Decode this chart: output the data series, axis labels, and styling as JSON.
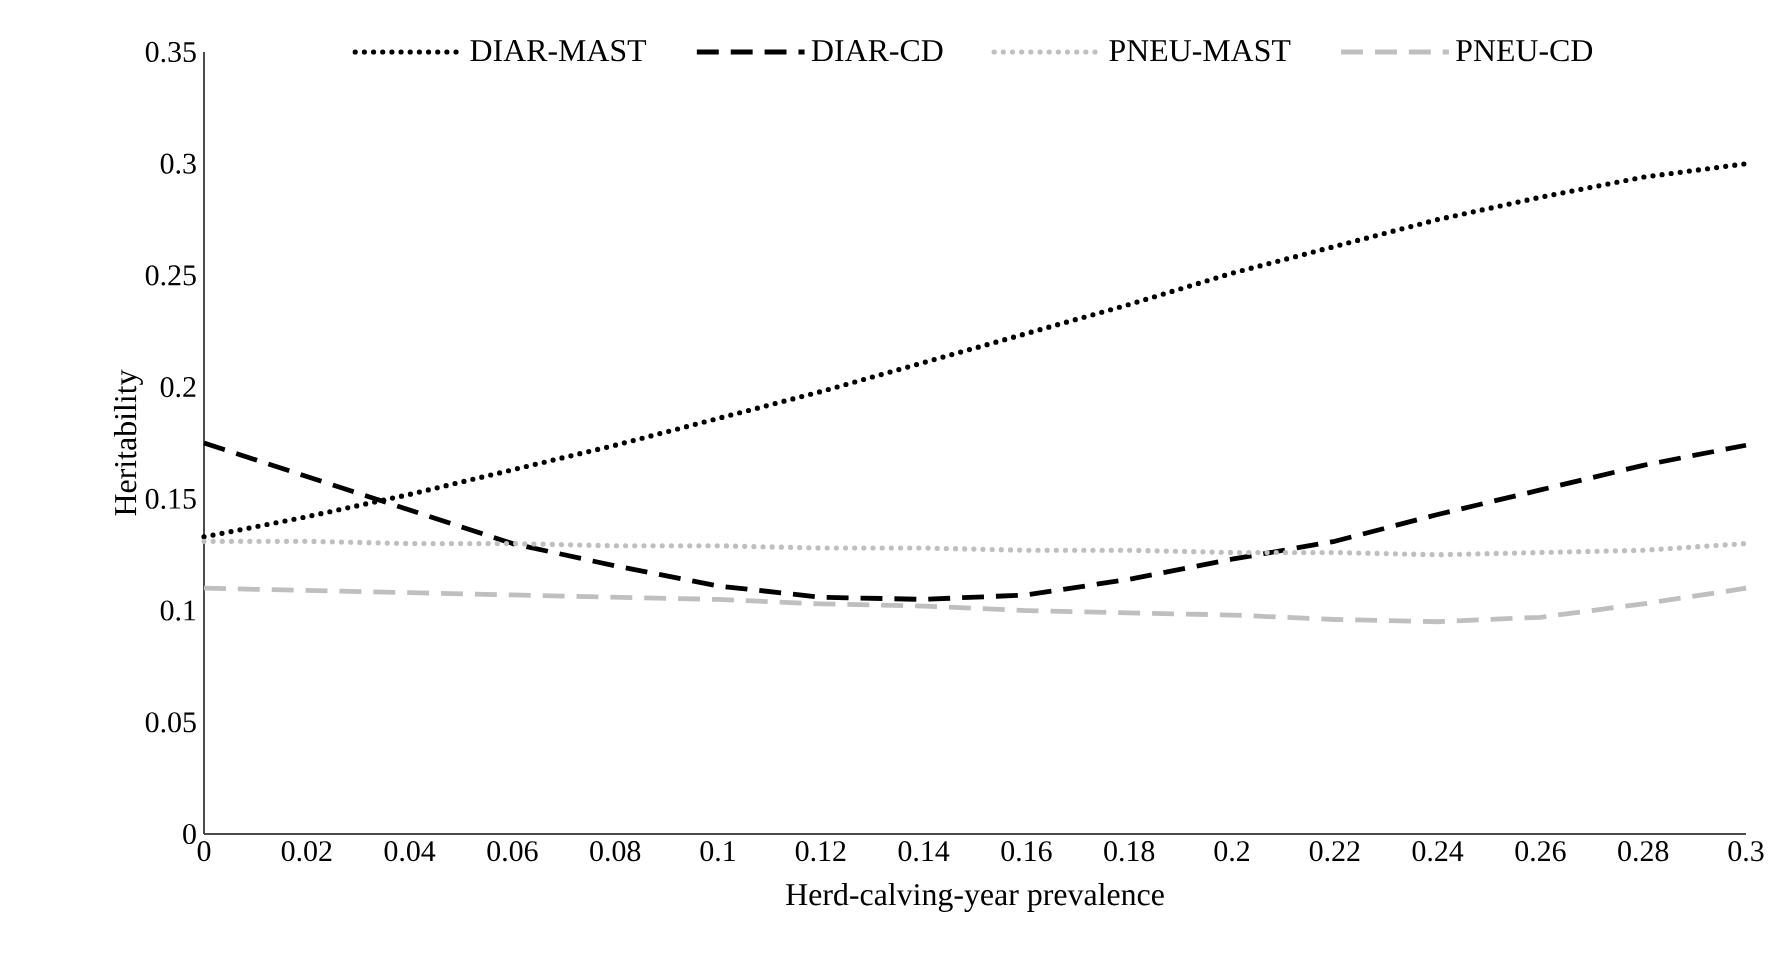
{
  "chart_data": {
    "type": "line",
    "xlabel": "Herd-calving-year prevalence",
    "ylabel": "Heritability",
    "x": [
      0,
      0.02,
      0.04,
      0.06,
      0.08,
      0.1,
      0.12,
      0.14,
      0.16,
      0.18,
      0.2,
      0.22,
      0.24,
      0.26,
      0.28,
      0.3
    ],
    "series": [
      {
        "name": "DIAR-MAST",
        "color": "#000000",
        "line_style": "dotted",
        "values": [
          0.133,
          0.142,
          0.152,
          0.163,
          0.174,
          0.186,
          0.198,
          0.211,
          0.224,
          0.237,
          0.251,
          0.263,
          0.275,
          0.285,
          0.294,
          0.3
        ]
      },
      {
        "name": "DIAR-CD",
        "color": "#000000",
        "line_style": "dashed",
        "values": [
          0.175,
          0.16,
          0.145,
          0.13,
          0.12,
          0.111,
          0.106,
          0.105,
          0.107,
          0.114,
          0.123,
          0.131,
          0.143,
          0.154,
          0.165,
          0.174
        ]
      },
      {
        "name": "PNEU-MAST",
        "color": "#bfbfbf",
        "line_style": "dotted",
        "values": [
          0.131,
          0.131,
          0.13,
          0.13,
          0.129,
          0.129,
          0.128,
          0.128,
          0.127,
          0.127,
          0.126,
          0.126,
          0.125,
          0.126,
          0.127,
          0.13
        ]
      },
      {
        "name": "PNEU-CD",
        "color": "#bfbfbf",
        "line_style": "dashed",
        "values": [
          0.11,
          0.109,
          0.108,
          0.107,
          0.106,
          0.105,
          0.103,
          0.102,
          0.1,
          0.099,
          0.098,
          0.096,
          0.095,
          0.097,
          0.103,
          0.11
        ]
      }
    ],
    "xlim": [
      0,
      0.3
    ],
    "ylim": [
      0,
      0.35
    ],
    "xticks": [
      0,
      0.02,
      0.04,
      0.06,
      0.08,
      0.1,
      0.12,
      0.14,
      0.16,
      0.18,
      0.2,
      0.22,
      0.24,
      0.26,
      0.28,
      0.3
    ],
    "yticks": [
      0,
      0.05,
      0.1,
      0.15,
      0.2,
      0.25,
      0.3,
      0.35
    ],
    "grid": false,
    "legend": "top",
    "marker": "none"
  }
}
